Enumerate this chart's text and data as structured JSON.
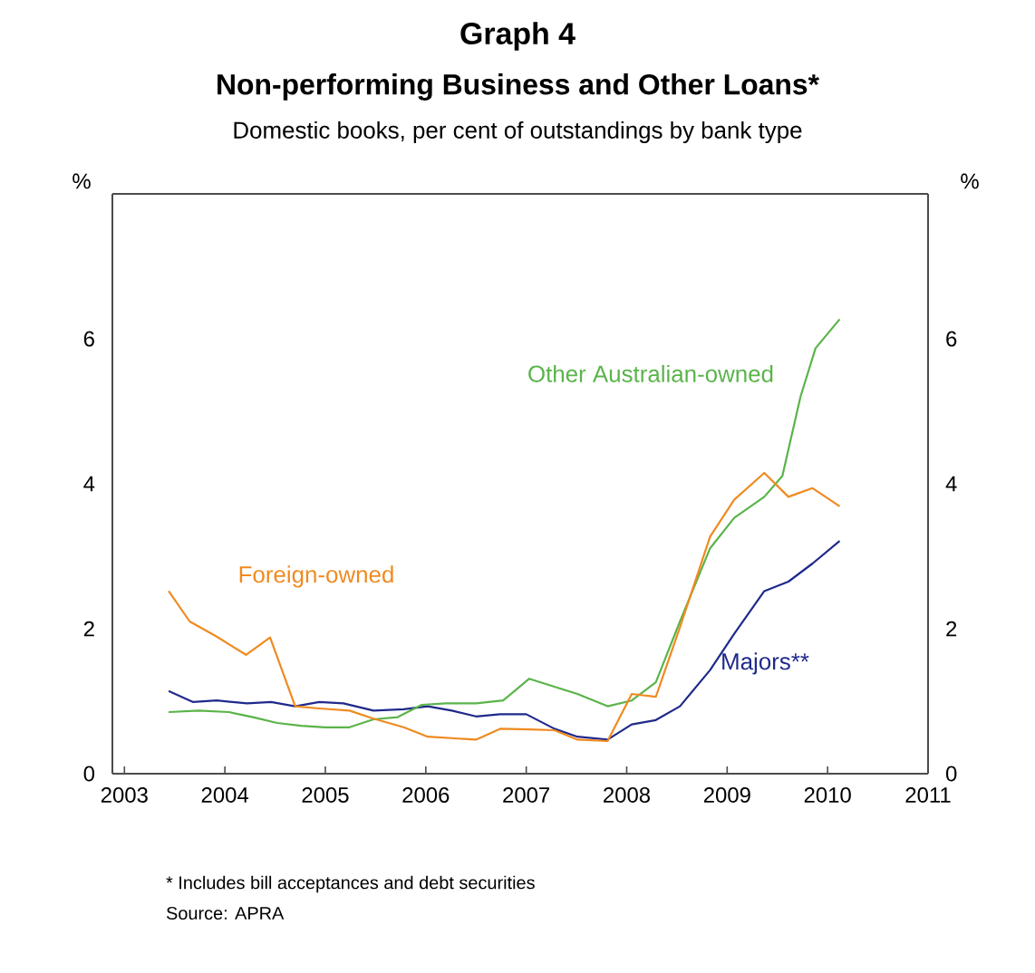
{
  "chart_data": {
    "type": "line",
    "title": "Non-performing Business and Other Loans*",
    "subtitle": "Domestic books, per cent of outstandings by bank type",
    "ylabel": "%",
    "y2label": "%",
    "annotations": [
      "Graph 4",
      "* Includes bill acceptances and debt securities",
      "Source: APRA"
    ],
    "xlim": [
      2002.88,
      2011
    ],
    "xticks": [
      2003,
      2004,
      2005,
      2006,
      2007,
      2008,
      2009,
      2010,
      2011
    ],
    "ylim": [
      0,
      8
    ],
    "yticks": [
      0,
      2,
      4,
      6
    ],
    "y2lim": [
      0,
      8
    ],
    "y2ticks": [
      0,
      2,
      4,
      6
    ],
    "series": [
      {
        "name": "Majors**",
        "color": "#1f2a8a",
        "x": [
          2003.44,
          2003.68,
          2003.92,
          2004.22,
          2004.46,
          2004.7,
          2004.94,
          2005.18,
          2005.48,
          2005.78,
          2006.02,
          2006.26,
          2006.5,
          2006.74,
          2007.0,
          2007.28,
          2007.51,
          2007.81,
          2008.05,
          2008.29,
          2008.53,
          2008.83,
          2009.07,
          2009.37,
          2009.61,
          2009.85,
          2010.12
        ],
        "values": [
          1.14,
          0.99,
          1.01,
          0.97,
          0.99,
          0.93,
          0.99,
          0.97,
          0.87,
          0.89,
          0.93,
          0.87,
          0.79,
          0.82,
          0.82,
          0.62,
          0.51,
          0.47,
          0.68,
          0.74,
          0.93,
          1.43,
          1.93,
          2.52,
          2.65,
          2.9,
          3.21
        ]
      },
      {
        "name": "Other Australian-owned",
        "color": "#5ab44a",
        "x": [
          2003.44,
          2003.74,
          2004.04,
          2004.28,
          2004.52,
          2004.76,
          2005.0,
          2005.24,
          2005.48,
          2005.72,
          2005.96,
          2006.2,
          2006.5,
          2006.77,
          2007.03,
          2007.28,
          2007.51,
          2007.81,
          2008.05,
          2008.29,
          2008.53,
          2008.83,
          2009.07,
          2009.37,
          2009.55,
          2009.73,
          2009.88,
          2010.12
        ],
        "values": [
          0.85,
          0.87,
          0.85,
          0.78,
          0.7,
          0.66,
          0.64,
          0.64,
          0.75,
          0.78,
          0.95,
          0.97,
          0.97,
          1.01,
          1.31,
          1.2,
          1.1,
          0.93,
          1.01,
          1.26,
          2.1,
          3.11,
          3.53,
          3.82,
          4.11,
          5.2,
          5.87,
          6.27
        ]
      },
      {
        "name": "Foreign-owned",
        "color": "#f08a20",
        "x": [
          2003.44,
          2003.65,
          2003.92,
          2004.21,
          2004.45,
          2004.7,
          2004.94,
          2005.24,
          2005.48,
          2005.78,
          2006.02,
          2006.26,
          2006.5,
          2006.74,
          2007.03,
          2007.28,
          2007.51,
          2007.81,
          2008.05,
          2008.29,
          2008.53,
          2008.83,
          2009.07,
          2009.37,
          2009.61,
          2009.85,
          2010.12
        ],
        "values": [
          2.52,
          2.1,
          1.89,
          1.64,
          1.88,
          0.93,
          0.9,
          0.87,
          0.76,
          0.64,
          0.51,
          0.49,
          0.47,
          0.62,
          0.61,
          0.6,
          0.47,
          0.45,
          1.1,
          1.06,
          2.02,
          3.27,
          3.78,
          4.15,
          3.82,
          3.94,
          3.69
        ]
      }
    ]
  }
}
